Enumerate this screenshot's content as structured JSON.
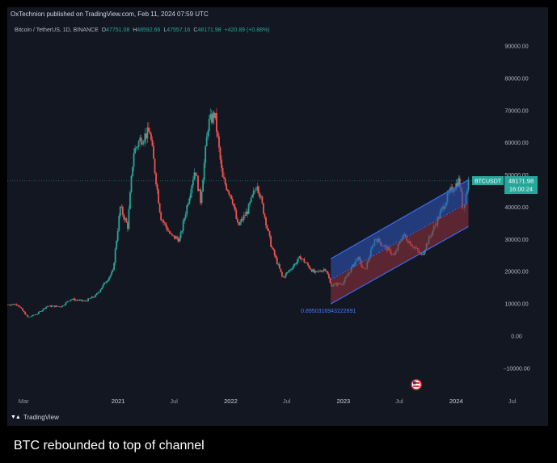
{
  "header": {
    "published": "OxTechnion published on TradingView.com, Feb 11, 2024 07:59 UTC"
  },
  "symbol_bar": {
    "symbol": "Bitcoin / TetherUS, 1D, BINANCE",
    "open_label": "O",
    "open": "47751.08",
    "high_label": "H",
    "high": "48592.66",
    "low_label": "L",
    "low": "47557.16",
    "close_label": "C",
    "close": "48171.98",
    "change": "+420.89 (+0.88%)"
  },
  "price_tag": {
    "ticker": "BTCUSDT",
    "price": "48171.98",
    "countdown": "16:00:24"
  },
  "channel_label": "0.8950316943222691",
  "footer": {
    "brand": "TradingView"
  },
  "caption": "BTC rebounded to top of channel",
  "colors": {
    "background": "#131722",
    "up": "#26a69a",
    "down": "#ef5350",
    "channel_upper_fill": "#2f54b8",
    "channel_lower_fill": "#8c2f3e",
    "channel_line": "#3d6cf0"
  },
  "chart_data": {
    "type": "candlestick",
    "title": "",
    "xlabel": "",
    "ylabel": "",
    "ylim": [
      -14000,
      96000
    ],
    "y_ticks": [
      "90000.00",
      "80000.00",
      "70000.00",
      "60000.00",
      "50000.00",
      "40000.00",
      "30000.00",
      "20000.00",
      "10000.00",
      "0.00",
      "−10000.00"
    ],
    "y_tick_values": [
      90000,
      80000,
      70000,
      60000,
      50000,
      40000,
      30000,
      20000,
      10000,
      0,
      -10000
    ],
    "x_ticks": [
      "Mar",
      "2021",
      "Jul",
      "2022",
      "Jul",
      "2023",
      "Jul",
      "2024",
      "Jul"
    ],
    "x_tick_dates": [
      "2020-03-01",
      "2021-01-01",
      "2021-07-01",
      "2022-01-01",
      "2022-07-01",
      "2023-01-01",
      "2023-07-01",
      "2024-01-01",
      "2024-07-01"
    ],
    "xlim": [
      "2020-01-08",
      "2024-10-25"
    ],
    "grid": false,
    "close_series": [
      {
        "date": "2020-01-10",
        "value": 9800
      },
      {
        "date": "2020-02-10",
        "value": 9900
      },
      {
        "date": "2020-03-15",
        "value": 5800
      },
      {
        "date": "2020-04-15",
        "value": 7000
      },
      {
        "date": "2020-05-15",
        "value": 9300
      },
      {
        "date": "2020-07-01",
        "value": 9200
      },
      {
        "date": "2020-08-01",
        "value": 11500
      },
      {
        "date": "2020-09-15",
        "value": 10800
      },
      {
        "date": "2020-10-20",
        "value": 12500
      },
      {
        "date": "2020-11-15",
        "value": 16000
      },
      {
        "date": "2020-12-15",
        "value": 20000
      },
      {
        "date": "2021-01-08",
        "value": 40000
      },
      {
        "date": "2021-02-01",
        "value": 34000
      },
      {
        "date": "2021-02-20",
        "value": 57000
      },
      {
        "date": "2021-03-13",
        "value": 61000
      },
      {
        "date": "2021-04-14",
        "value": 63500
      },
      {
        "date": "2021-05-19",
        "value": 37000
      },
      {
        "date": "2021-06-22",
        "value": 31000
      },
      {
        "date": "2021-07-20",
        "value": 30000
      },
      {
        "date": "2021-09-07",
        "value": 52000
      },
      {
        "date": "2021-09-25",
        "value": 42000
      },
      {
        "date": "2021-10-20",
        "value": 66000
      },
      {
        "date": "2021-11-10",
        "value": 69000
      },
      {
        "date": "2021-12-05",
        "value": 49000
      },
      {
        "date": "2022-01-05",
        "value": 43000
      },
      {
        "date": "2022-01-24",
        "value": 34000
      },
      {
        "date": "2022-02-25",
        "value": 39000
      },
      {
        "date": "2022-03-28",
        "value": 47500
      },
      {
        "date": "2022-05-12",
        "value": 28000
      },
      {
        "date": "2022-06-18",
        "value": 18000
      },
      {
        "date": "2022-08-15",
        "value": 24500
      },
      {
        "date": "2022-09-30",
        "value": 19500
      },
      {
        "date": "2022-11-05",
        "value": 21000
      },
      {
        "date": "2022-11-21",
        "value": 15800
      },
      {
        "date": "2022-12-31",
        "value": 16500
      },
      {
        "date": "2023-02-16",
        "value": 24500
      },
      {
        "date": "2023-03-10",
        "value": 20000
      },
      {
        "date": "2023-04-14",
        "value": 30500
      },
      {
        "date": "2023-06-15",
        "value": 25000
      },
      {
        "date": "2023-07-13",
        "value": 31500
      },
      {
        "date": "2023-09-11",
        "value": 25000
      },
      {
        "date": "2023-10-25",
        "value": 34500
      },
      {
        "date": "2023-12-08",
        "value": 44000
      },
      {
        "date": "2024-01-11",
        "value": 48500
      },
      {
        "date": "2024-01-23",
        "value": 39000
      },
      {
        "date": "2024-02-10",
        "value": 48171.98
      }
    ],
    "last_close": 48171.98,
    "channel": {
      "label": "0.8950316943222691",
      "upper": [
        {
          "date": "2022-11-21",
          "value": 24000
        },
        {
          "date": "2024-02-10",
          "value": 48500
        }
      ],
      "mid": [
        {
          "date": "2022-11-21",
          "value": 17500
        },
        {
          "date": "2024-02-10",
          "value": 41500
        }
      ],
      "lower": [
        {
          "date": "2022-11-21",
          "value": 10000
        },
        {
          "date": "2024-02-10",
          "value": 34000
        }
      ]
    }
  }
}
